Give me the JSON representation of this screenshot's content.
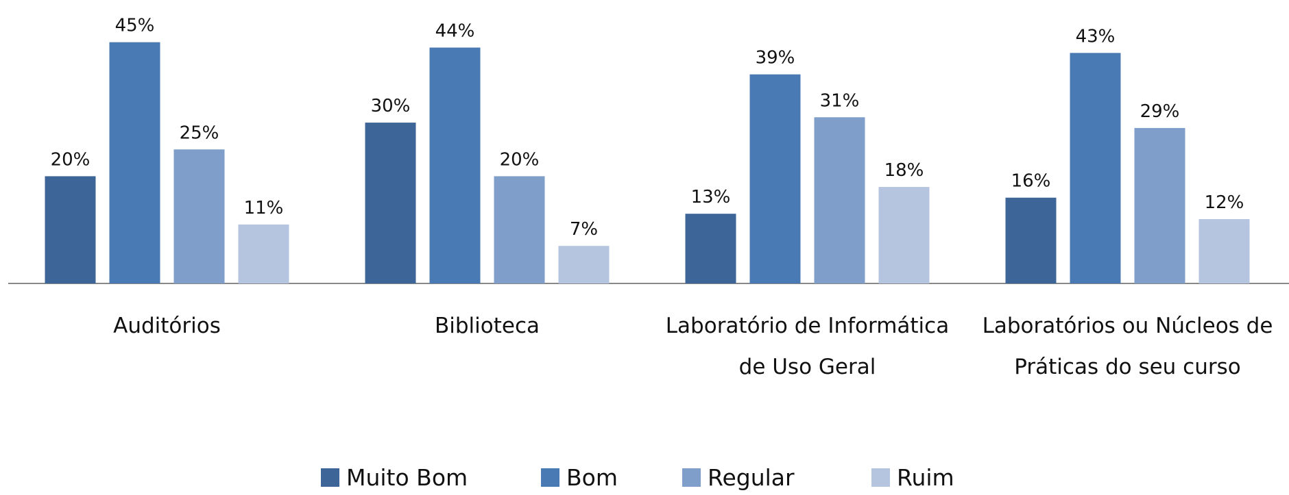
{
  "chart_data": {
    "type": "bar",
    "categories": [
      "Auditórios",
      "Biblioteca",
      "Laboratório de Informática de Uso Geral",
      "Laboratórios ou Núcleos de Práticas do seu curso"
    ],
    "series": [
      {
        "name": "Muito Bom",
        "color": "#3d6597",
        "values": [
          20,
          30,
          13,
          16
        ],
        "value_labels": [
          "20%",
          "30%",
          "13%",
          "16%"
        ]
      },
      {
        "name": "Bom",
        "color": "#4a7ab3",
        "values": [
          45,
          44,
          39,
          43
        ],
        "value_labels": [
          "45%",
          "44%",
          "39%",
          "43%"
        ]
      },
      {
        "name": "Regular",
        "color": "#7f9ec9",
        "values": [
          25,
          20,
          31,
          29
        ],
        "value_labels": [
          "25%",
          "20%",
          "31%",
          "29%"
        ]
      },
      {
        "name": "Ruim",
        "color": "#b5c4df",
        "values": [
          11,
          7,
          18,
          12
        ],
        "value_labels": [
          "11%",
          "7%",
          "18%",
          "12%"
        ]
      }
    ],
    "legend": "bottom"
  }
}
